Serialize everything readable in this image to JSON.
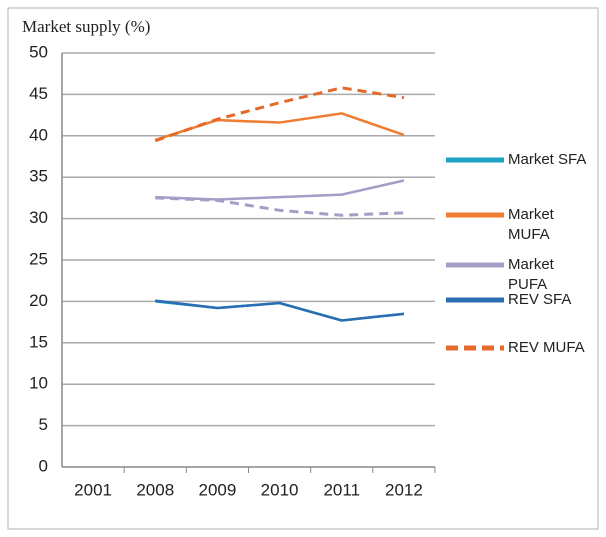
{
  "chart_data": {
    "type": "line",
    "y_axis_label": "Market supply (%)",
    "categories": [
      "2001",
      "2008",
      "2009",
      "2010",
      "2011",
      "2012"
    ],
    "series": [
      {
        "name": "Market SFA",
        "color": "#1fa3c4",
        "dash": false,
        "values": [
          null,
          20.0,
          19.2,
          19.8,
          17.7,
          18.5
        ]
      },
      {
        "name": "Market MUFA",
        "color": "#ee7d31",
        "dash": false,
        "values": [
          null,
          39.5,
          41.9,
          41.6,
          42.7,
          40.1
        ]
      },
      {
        "name": "Market PUFA",
        "color": "#a69cc8",
        "dash": false,
        "values": [
          null,
          32.6,
          32.3,
          32.6,
          32.9,
          34.6
        ]
      },
      {
        "name": "REV SFA",
        "color": "#2a6db3",
        "dash": false,
        "values": [
          null,
          20.1,
          19.2,
          19.8,
          17.7,
          18.5
        ]
      },
      {
        "name": "REV MUFA",
        "color": "#e4692a",
        "dash": true,
        "values": [
          null,
          39.4,
          42.0,
          44.0,
          45.8,
          44.6
        ]
      },
      {
        "color": "#a69cc8",
        "dash": true,
        "values": [
          null,
          32.5,
          32.2,
          31.0,
          30.4,
          30.7
        ]
      }
    ],
    "ylim": [
      0,
      50
    ],
    "yticks": [
      0,
      5,
      10,
      15,
      20,
      25,
      30,
      35,
      40,
      45,
      50
    ],
    "grid": true
  }
}
